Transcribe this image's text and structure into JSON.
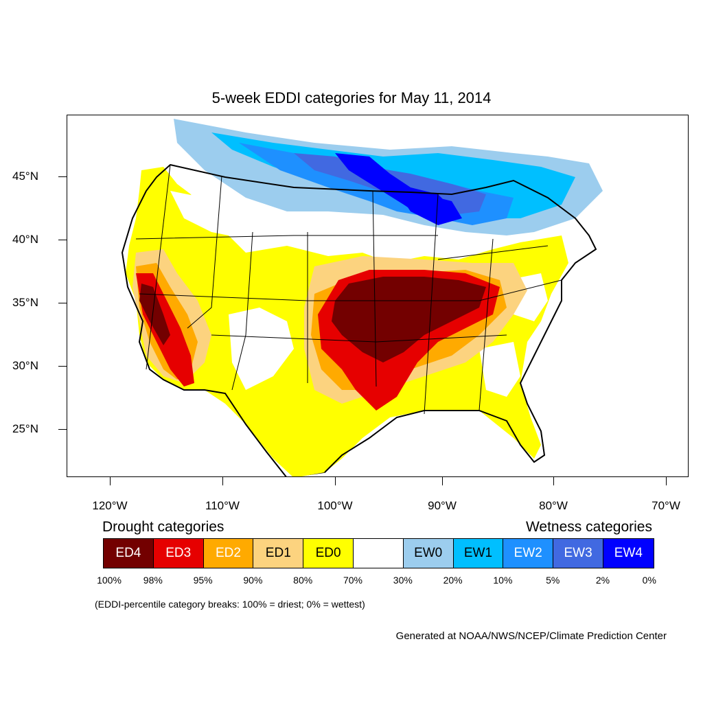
{
  "title": "5-week EDDI categories for May 11, 2014",
  "lat_labels": [
    "45°N",
    "40°N",
    "35°N",
    "30°N",
    "25°N"
  ],
  "lon_labels": [
    "120°W",
    "110°W",
    "100°W",
    "90°W",
    "80°W",
    "70°W"
  ],
  "legend": {
    "drought_heading": "Drought categories",
    "wetness_heading": "Wetness categories",
    "categories": [
      {
        "label": "ED4",
        "color": "#730000",
        "text_color": "#ffffff"
      },
      {
        "label": "ED3",
        "color": "#e60000",
        "text_color": "#ffffff"
      },
      {
        "label": "ED2",
        "color": "#ffaa00",
        "text_color": "#ffffff"
      },
      {
        "label": "ED1",
        "color": "#fcd37f",
        "text_color": "#000000"
      },
      {
        "label": "ED0",
        "color": "#ffff00",
        "text_color": "#000000"
      },
      {
        "label": "",
        "color": "#ffffff",
        "text_color": "#000000"
      },
      {
        "label": "EW0",
        "color": "#9ccdee",
        "text_color": "#000000"
      },
      {
        "label": "EW1",
        "color": "#00bfff",
        "text_color": "#000000"
      },
      {
        "label": "EW2",
        "color": "#1e90ff",
        "text_color": "#ffffff"
      },
      {
        "label": "EW3",
        "color": "#4169e1",
        "text_color": "#ffffff"
      },
      {
        "label": "EW4",
        "color": "#0000ff",
        "text_color": "#ffffff"
      }
    ],
    "percentiles": [
      "100%",
      "98%",
      "95%",
      "90%",
      "80%",
      "70%",
      "30%",
      "20%",
      "10%",
      "5%",
      "2%",
      "0%"
    ]
  },
  "note": "(EDDI-percentile category breaks: 100% = driest; 0% = wettest)",
  "credit": "Generated at NOAA/NWS/NCEP/Climate Prediction Center"
}
